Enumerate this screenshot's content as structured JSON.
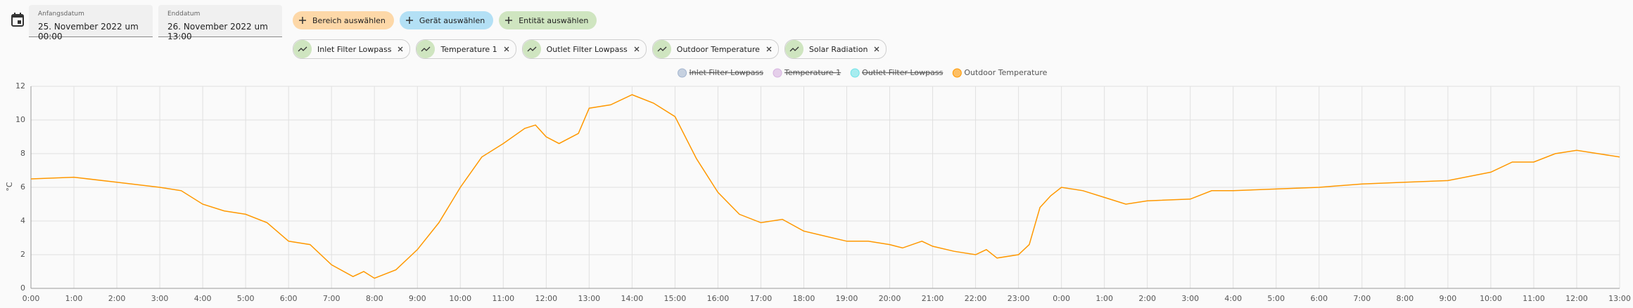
{
  "header": {
    "start_label": "Anfangsdatum",
    "start_value": "25. November 2022 um 00:00",
    "end_label": "Enddatum",
    "end_value": "26. November 2022 um 13:00"
  },
  "buttons": [
    "Bereich auswählen",
    "Gerät auswählen",
    "Entität auswählen"
  ],
  "entities": [
    "Inlet Filter Lowpass",
    "Temperature 1",
    "Outlet Filter Lowpass",
    "Outdoor Temperature",
    "Solar Radiation"
  ],
  "chart_data": {
    "type": "line",
    "y_label": "°C",
    "grid": true,
    "legend": "top",
    "xlim": [
      0,
      37
    ],
    "ylim": [
      0,
      12
    ],
    "yticks": [
      0,
      2,
      4,
      6,
      8,
      10,
      12
    ],
    "xticks": [
      {
        "value": 0,
        "label": "0:00"
      },
      {
        "value": 1,
        "label": "1:00"
      },
      {
        "value": 2,
        "label": "2:00"
      },
      {
        "value": 3,
        "label": "3:00"
      },
      {
        "value": 4,
        "label": "4:00"
      },
      {
        "value": 5,
        "label": "5:00"
      },
      {
        "value": 6,
        "label": "6:00"
      },
      {
        "value": 7,
        "label": "7:00"
      },
      {
        "value": 8,
        "label": "8:00"
      },
      {
        "value": 9,
        "label": "9:00"
      },
      {
        "value": 10,
        "label": "10:00"
      },
      {
        "value": 11,
        "label": "11:00"
      },
      {
        "value": 12,
        "label": "12:00"
      },
      {
        "value": 13,
        "label": "13:00"
      },
      {
        "value": 14,
        "label": "14:00"
      },
      {
        "value": 15,
        "label": "15:00"
      },
      {
        "value": 16,
        "label": "16:00"
      },
      {
        "value": 17,
        "label": "17:00"
      },
      {
        "value": 18,
        "label": "18:00"
      },
      {
        "value": 19,
        "label": "19:00"
      },
      {
        "value": 20,
        "label": "20:00"
      },
      {
        "value": 21,
        "label": "21:00"
      },
      {
        "value": 22,
        "label": "22:00"
      },
      {
        "value": 23,
        "label": "23:00"
      },
      {
        "value": 24,
        "label": "0:00"
      },
      {
        "value": 25,
        "label": "1:00"
      },
      {
        "value": 26,
        "label": "2:00"
      },
      {
        "value": 27,
        "label": "3:00"
      },
      {
        "value": 28,
        "label": "4:00"
      },
      {
        "value": 29,
        "label": "5:00"
      },
      {
        "value": 30,
        "label": "6:00"
      },
      {
        "value": 31,
        "label": "7:00"
      },
      {
        "value": 32,
        "label": "8:00"
      },
      {
        "value": 33,
        "label": "9:00"
      },
      {
        "value": 34,
        "label": "10:00"
      },
      {
        "value": 35,
        "label": "11:00"
      },
      {
        "value": 36,
        "label": "12:00"
      },
      {
        "value": 37,
        "label": "13:00"
      }
    ],
    "x": [
      0,
      1,
      2,
      3,
      3.5,
      4,
      4.5,
      5,
      5.5,
      6,
      6.5,
      7,
      7.5,
      7.75,
      8,
      8.5,
      9,
      9.5,
      10,
      10.5,
      11,
      11.5,
      11.75,
      12,
      12.3,
      12.75,
      13,
      13.5,
      14,
      14.5,
      15,
      15.5,
      16,
      16.5,
      17,
      17.5,
      18,
      18.5,
      19,
      19.5,
      20,
      20.3,
      20.75,
      21,
      21.5,
      22,
      22.25,
      22.5,
      23,
      23.25,
      23.5,
      23.75,
      24,
      24.5,
      25,
      25.5,
      26,
      27,
      27.5,
      28,
      29,
      30,
      31,
      32,
      33,
      34,
      34.5,
      35,
      35.5,
      36,
      36.5,
      37
    ],
    "series": [
      {
        "name": "Inlet Filter Lowpass",
        "color": "#a3b5cf",
        "hidden": true
      },
      {
        "name": "Temperature 1",
        "color": "#d7b3e0",
        "hidden": true
      },
      {
        "name": "Outlet Filter Lowpass",
        "color": "#6fe3e8",
        "hidden": true
      },
      {
        "name": "Outdoor Temperature",
        "color": "#ff9800",
        "hidden": false,
        "values": [
          6.5,
          6.6,
          6.3,
          6.0,
          5.8,
          5.0,
          4.6,
          4.4,
          3.9,
          2.8,
          2.6,
          1.4,
          0.7,
          1.0,
          0.6,
          1.1,
          2.3,
          3.9,
          6.0,
          7.8,
          8.6,
          9.5,
          9.7,
          9.0,
          8.6,
          9.2,
          10.7,
          10.9,
          11.5,
          11.0,
          10.2,
          7.7,
          5.7,
          4.4,
          3.9,
          4.1,
          3.4,
          3.1,
          2.8,
          2.8,
          2.6,
          2.4,
          2.8,
          2.5,
          2.2,
          2.0,
          2.3,
          1.8,
          2.0,
          2.6,
          4.8,
          5.5,
          6.0,
          5.8,
          5.4,
          5.0,
          5.2,
          5.3,
          5.8,
          5.8,
          5.9,
          6.0,
          6.2,
          6.3,
          6.4,
          6.9,
          7.5,
          7.5,
          8.0,
          8.2,
          8.0,
          7.8
        ]
      }
    ]
  }
}
